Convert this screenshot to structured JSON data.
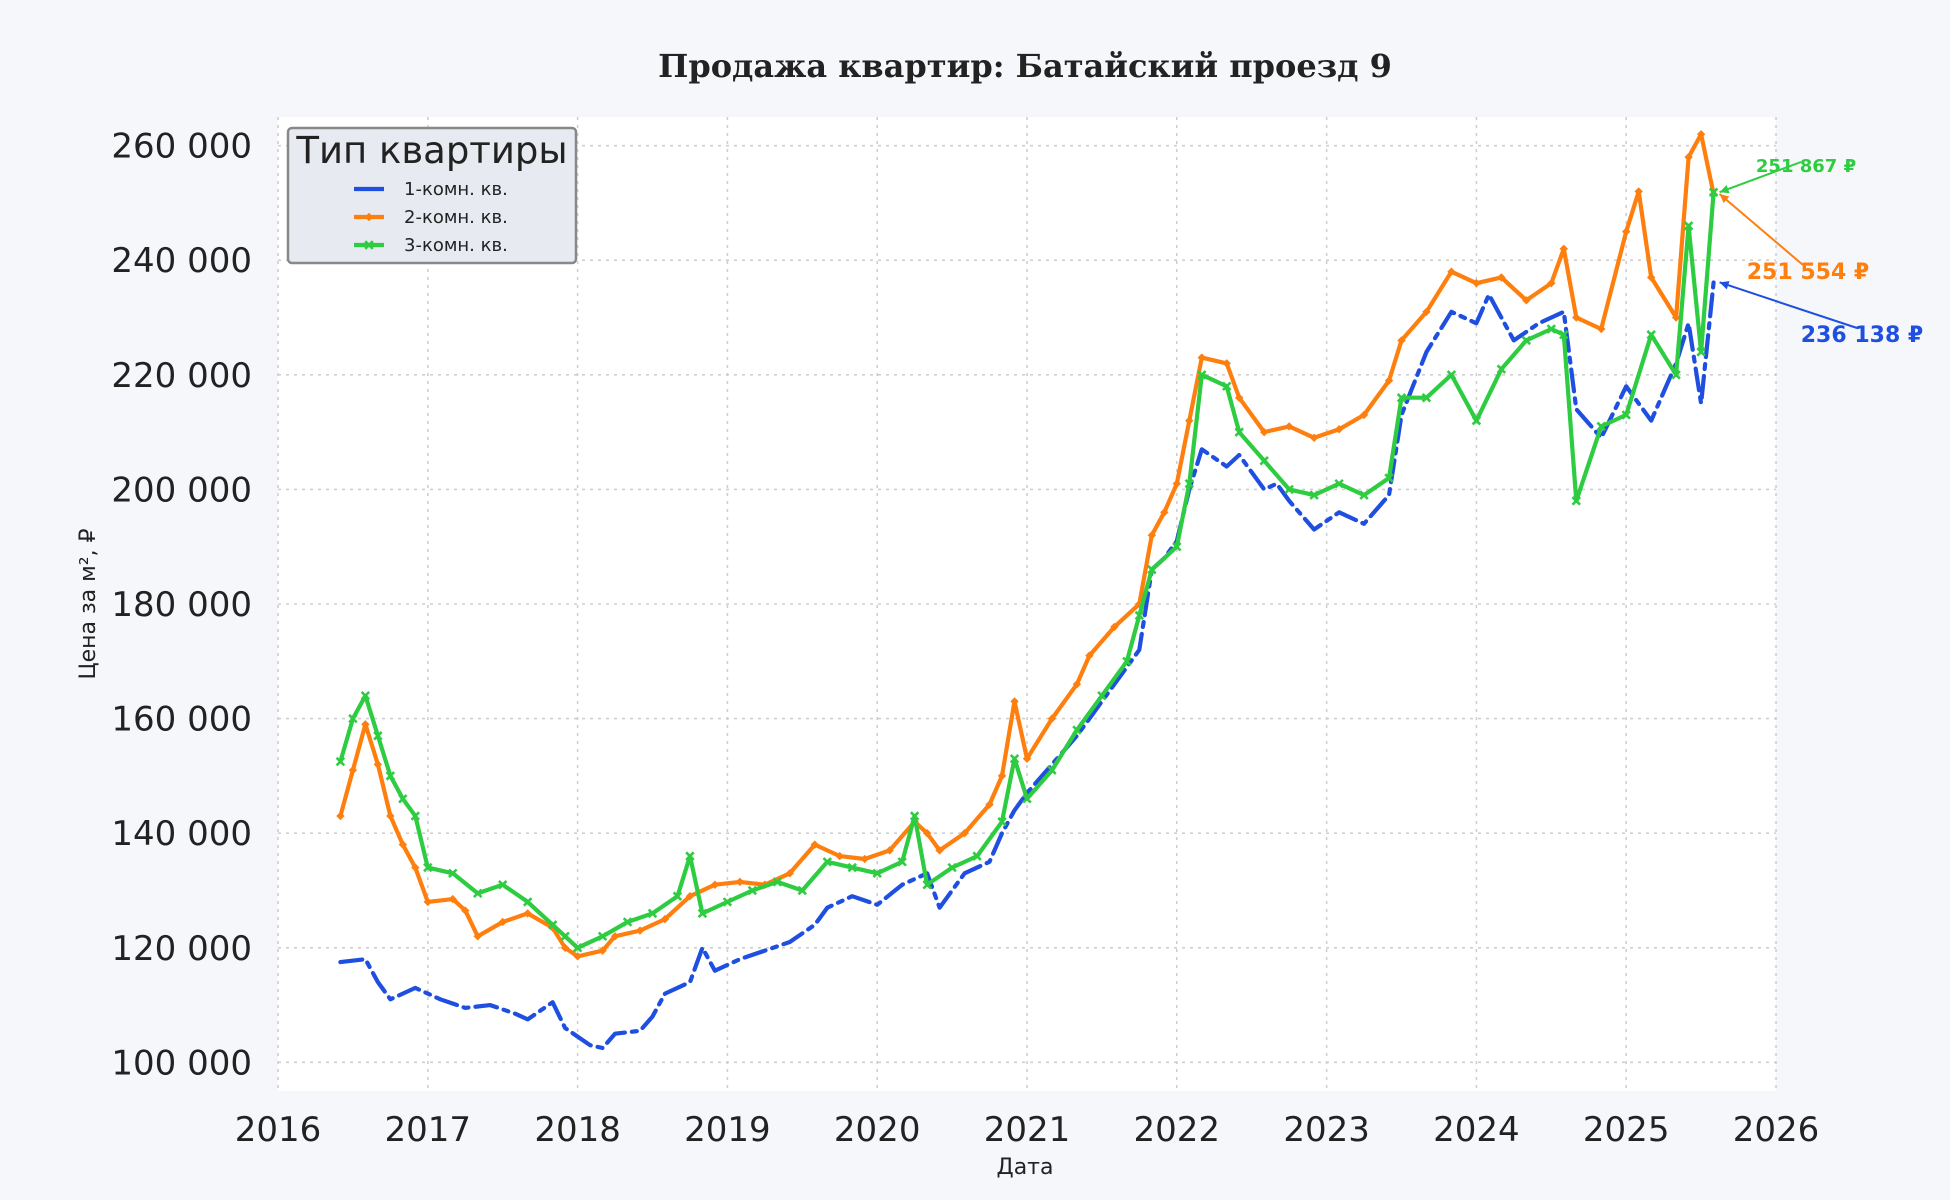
{
  "chart_data": {
    "type": "line",
    "title": "Продажа квартир: Батайский проезд 9",
    "xlabel": "Дата",
    "ylabel": "Цена за м², ₽",
    "xlim": [
      2016,
      2026
    ],
    "ylim": [
      95000,
      265000
    ],
    "x_ticks": [
      "2016",
      "2017",
      "2018",
      "2019",
      "2020",
      "2021",
      "2022",
      "2023",
      "2024",
      "2025",
      "2026"
    ],
    "y_ticks": [
      "100 000",
      "120 000",
      "140 000",
      "160 000",
      "180 000",
      "200 000",
      "220 000",
      "240 000",
      "260 000"
    ],
    "grid": true,
    "legend": {
      "title": "Тип квартиры",
      "placement": "top-left"
    },
    "series": [
      {
        "name": "1-комн. кв.",
        "color": "#1f4fe0",
        "style": "dashdot",
        "marker": "none",
        "end_label": "236 138 ₽",
        "points": [
          [
            "2016-06",
            117500
          ],
          [
            "2016-08",
            118000
          ],
          [
            "2016-09",
            114000
          ],
          [
            "2016-10",
            111000
          ],
          [
            "2016-12",
            113000
          ],
          [
            "2017-02",
            111000
          ],
          [
            "2017-04",
            109500
          ],
          [
            "2017-06",
            110000
          ],
          [
            "2017-08",
            108500
          ],
          [
            "2017-09",
            107500
          ],
          [
            "2017-11",
            110500
          ],
          [
            "2017-12",
            106000
          ],
          [
            "2018-01",
            104500
          ],
          [
            "2018-02",
            103000
          ],
          [
            "2018-03",
            102500
          ],
          [
            "2018-04",
            105000
          ],
          [
            "2018-06",
            105500
          ],
          [
            "2018-07",
            108000
          ],
          [
            "2018-08",
            112000
          ],
          [
            "2018-10",
            114000
          ],
          [
            "2018-11",
            120000
          ],
          [
            "2018-12",
            116000
          ],
          [
            "2019-02",
            118000
          ],
          [
            "2019-04",
            119500
          ],
          [
            "2019-06",
            121000
          ],
          [
            "2019-08",
            124000
          ],
          [
            "2019-09",
            127000
          ],
          [
            "2019-11",
            129000
          ],
          [
            "2020-01",
            127500
          ],
          [
            "2020-03",
            131000
          ],
          [
            "2020-05",
            133000
          ],
          [
            "2020-06",
            127000
          ],
          [
            "2020-08",
            133000
          ],
          [
            "2020-10",
            135000
          ],
          [
            "2020-11",
            140000
          ],
          [
            "2020-12",
            144000
          ],
          [
            "2021-01",
            147000
          ],
          [
            "2021-03",
            152000
          ],
          [
            "2021-05",
            157000
          ],
          [
            "2021-07",
            163000
          ],
          [
            "2021-08",
            166000
          ],
          [
            "2021-09",
            169000
          ],
          [
            "2021-10",
            172000
          ],
          [
            "2021-11",
            186000
          ],
          [
            "2021-12",
            188000
          ],
          [
            "2022-01",
            191000
          ],
          [
            "2022-02",
            200000
          ],
          [
            "2022-03",
            207000
          ],
          [
            "2022-05",
            204000
          ],
          [
            "2022-06",
            206000
          ],
          [
            "2022-08",
            200000
          ],
          [
            "2022-09",
            201000
          ],
          [
            "2022-10",
            198000
          ],
          [
            "2022-12",
            193000
          ],
          [
            "2023-02",
            196000
          ],
          [
            "2023-04",
            194000
          ],
          [
            "2023-06",
            199000
          ],
          [
            "2023-07",
            213000
          ],
          [
            "2023-09",
            224000
          ],
          [
            "2023-11",
            231000
          ],
          [
            "2024-01",
            229000
          ],
          [
            "2024-02",
            234000
          ],
          [
            "2024-04",
            226000
          ],
          [
            "2024-06",
            229000
          ],
          [
            "2024-08",
            231000
          ],
          [
            "2024-09",
            214000
          ],
          [
            "2024-11",
            209000
          ],
          [
            "2025-01",
            218000
          ],
          [
            "2025-03",
            212000
          ],
          [
            "2025-05",
            222000
          ],
          [
            "2025-06",
            229000
          ],
          [
            "2025-07",
            215000
          ],
          [
            "2025-08",
            236138
          ]
        ]
      },
      {
        "name": "2-комн. кв.",
        "color": "#ff7f0e",
        "style": "solid",
        "marker": "diamond",
        "end_label": "251 554 ₽",
        "points": [
          [
            "2016-06",
            143000
          ],
          [
            "2016-07",
            151000
          ],
          [
            "2016-08",
            159000
          ],
          [
            "2016-09",
            152000
          ],
          [
            "2016-10",
            143000
          ],
          [
            "2016-11",
            138000
          ],
          [
            "2016-12",
            134000
          ],
          [
            "2017-01",
            128000
          ],
          [
            "2017-03",
            128500
          ],
          [
            "2017-04",
            126500
          ],
          [
            "2017-05",
            122000
          ],
          [
            "2017-07",
            124500
          ],
          [
            "2017-09",
            126000
          ],
          [
            "2017-11",
            123500
          ],
          [
            "2017-12",
            120000
          ],
          [
            "2018-01",
            118500
          ],
          [
            "2018-03",
            119500
          ],
          [
            "2018-04",
            122000
          ],
          [
            "2018-06",
            123000
          ],
          [
            "2018-08",
            125000
          ],
          [
            "2018-10",
            129000
          ],
          [
            "2018-12",
            131000
          ],
          [
            "2019-02",
            131500
          ],
          [
            "2019-04",
            131000
          ],
          [
            "2019-06",
            133000
          ],
          [
            "2019-08",
            138000
          ],
          [
            "2019-10",
            136000
          ],
          [
            "2019-12",
            135500
          ],
          [
            "2020-02",
            137000
          ],
          [
            "2020-04",
            142000
          ],
          [
            "2020-05",
            140000
          ],
          [
            "2020-06",
            137000
          ],
          [
            "2020-08",
            140000
          ],
          [
            "2020-10",
            145000
          ],
          [
            "2020-11",
            150000
          ],
          [
            "2020-12",
            163000
          ],
          [
            "2021-01",
            153000
          ],
          [
            "2021-03",
            160000
          ],
          [
            "2021-05",
            166000
          ],
          [
            "2021-06",
            171000
          ],
          [
            "2021-08",
            176000
          ],
          [
            "2021-10",
            180000
          ],
          [
            "2021-11",
            192000
          ],
          [
            "2021-12",
            196000
          ],
          [
            "2022-01",
            201000
          ],
          [
            "2022-02",
            212000
          ],
          [
            "2022-03",
            223000
          ],
          [
            "2022-05",
            222000
          ],
          [
            "2022-06",
            216000
          ],
          [
            "2022-08",
            210000
          ],
          [
            "2022-10",
            211000
          ],
          [
            "2022-12",
            209000
          ],
          [
            "2023-02",
            210500
          ],
          [
            "2023-04",
            213000
          ],
          [
            "2023-06",
            219000
          ],
          [
            "2023-07",
            226000
          ],
          [
            "2023-09",
            231000
          ],
          [
            "2023-11",
            238000
          ],
          [
            "2024-01",
            236000
          ],
          [
            "2024-03",
            237000
          ],
          [
            "2024-05",
            233000
          ],
          [
            "2024-07",
            236000
          ],
          [
            "2024-08",
            242000
          ],
          [
            "2024-09",
            230000
          ],
          [
            "2024-11",
            228000
          ],
          [
            "2025-01",
            245000
          ],
          [
            "2025-02",
            252000
          ],
          [
            "2025-03",
            237000
          ],
          [
            "2025-05",
            230000
          ],
          [
            "2025-06",
            258000
          ],
          [
            "2025-07",
            262000
          ],
          [
            "2025-08",
            251554
          ]
        ]
      },
      {
        "name": "3-комн. кв.",
        "color": "#2ecc40",
        "style": "solid",
        "marker": "x",
        "end_label": "251 867 ₽",
        "points": [
          [
            "2016-06",
            152500
          ],
          [
            "2016-07",
            160000
          ],
          [
            "2016-08",
            164000
          ],
          [
            "2016-09",
            157000
          ],
          [
            "2016-10",
            150000
          ],
          [
            "2016-11",
            146000
          ],
          [
            "2016-12",
            143000
          ],
          [
            "2017-01",
            134000
          ],
          [
            "2017-03",
            133000
          ],
          [
            "2017-05",
            129500
          ],
          [
            "2017-07",
            131000
          ],
          [
            "2017-09",
            128000
          ],
          [
            "2017-11",
            124000
          ],
          [
            "2017-12",
            122000
          ],
          [
            "2018-01",
            120000
          ],
          [
            "2018-03",
            122000
          ],
          [
            "2018-05",
            124500
          ],
          [
            "2018-07",
            126000
          ],
          [
            "2018-09",
            129000
          ],
          [
            "2018-10",
            136000
          ],
          [
            "2018-11",
            126000
          ],
          [
            "2019-01",
            128000
          ],
          [
            "2019-03",
            130000
          ],
          [
            "2019-05",
            131500
          ],
          [
            "2019-07",
            130000
          ],
          [
            "2019-09",
            135000
          ],
          [
            "2019-11",
            134000
          ],
          [
            "2020-01",
            133000
          ],
          [
            "2020-03",
            135000
          ],
          [
            "2020-04",
            143000
          ],
          [
            "2020-05",
            131000
          ],
          [
            "2020-07",
            134000
          ],
          [
            "2020-09",
            136000
          ],
          [
            "2020-11",
            142000
          ],
          [
            "2020-12",
            153000
          ],
          [
            "2021-01",
            146000
          ],
          [
            "2021-03",
            151000
          ],
          [
            "2021-05",
            158000
          ],
          [
            "2021-07",
            164000
          ],
          [
            "2021-09",
            170000
          ],
          [
            "2021-10",
            178000
          ],
          [
            "2021-11",
            186000
          ],
          [
            "2022-01",
            190000
          ],
          [
            "2022-02",
            201000
          ],
          [
            "2022-03",
            220000
          ],
          [
            "2022-05",
            218000
          ],
          [
            "2022-06",
            210000
          ],
          [
            "2022-08",
            205000
          ],
          [
            "2022-10",
            200000
          ],
          [
            "2022-12",
            199000
          ],
          [
            "2023-02",
            201000
          ],
          [
            "2023-04",
            199000
          ],
          [
            "2023-06",
            202000
          ],
          [
            "2023-07",
            216000
          ],
          [
            "2023-09",
            216000
          ],
          [
            "2023-11",
            220000
          ],
          [
            "2024-01",
            212000
          ],
          [
            "2024-03",
            221000
          ],
          [
            "2024-05",
            226000
          ],
          [
            "2024-07",
            228000
          ],
          [
            "2024-08",
            227000
          ],
          [
            "2024-09",
            198000
          ],
          [
            "2024-11",
            211000
          ],
          [
            "2025-01",
            213000
          ],
          [
            "2025-03",
            227000
          ],
          [
            "2025-05",
            220000
          ],
          [
            "2025-06",
            246000
          ],
          [
            "2025-07",
            224000
          ],
          [
            "2025-08",
            251867
          ]
        ]
      }
    ]
  }
}
